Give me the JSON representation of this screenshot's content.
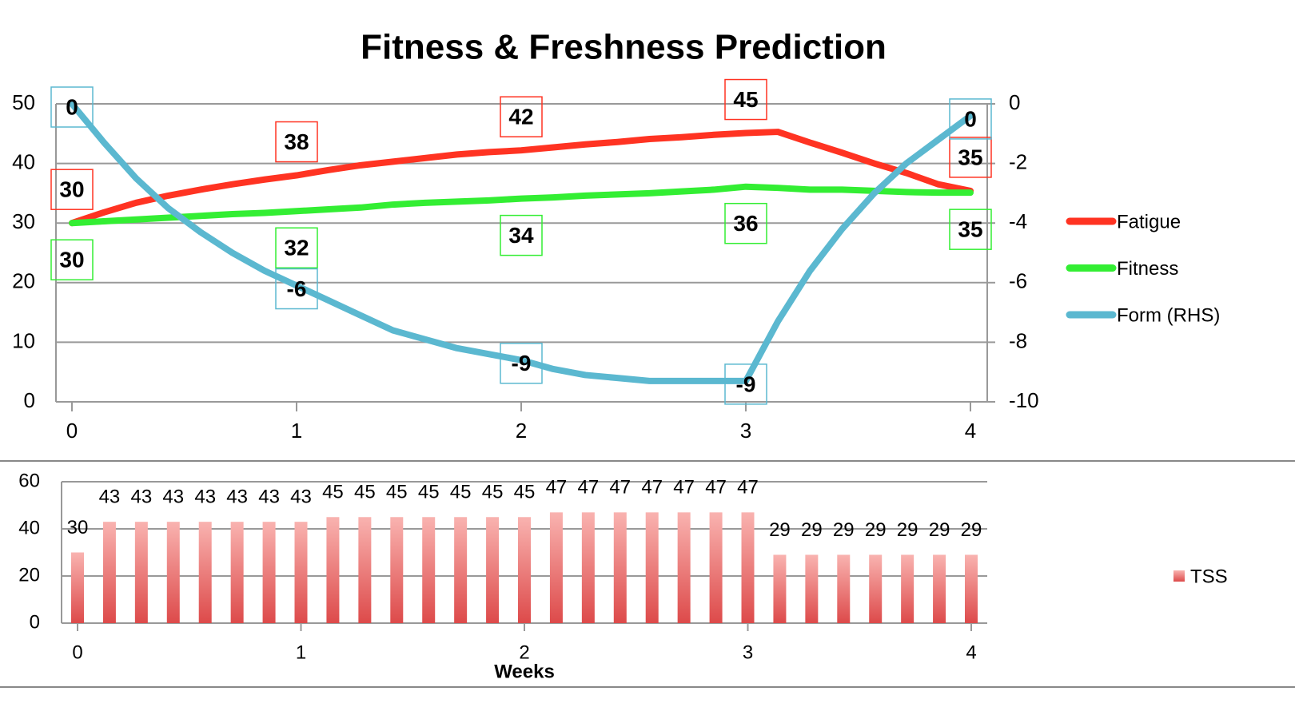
{
  "chart_data": [
    {
      "type": "line",
      "title": "Fitness & Freshness Prediction",
      "x": [
        0,
        1,
        2,
        3,
        4,
        5,
        6,
        7,
        8,
        9,
        10,
        11,
        12,
        13,
        14,
        15,
        16,
        17,
        18,
        19,
        20,
        21,
        22,
        23,
        24,
        25,
        26,
        27,
        28
      ],
      "xlim": [
        0,
        28
      ],
      "xticks": [
        {
          "value": 0,
          "label": "0"
        },
        {
          "value": 7,
          "label": "1"
        },
        {
          "value": 14,
          "label": "2"
        },
        {
          "value": 21,
          "label": "3"
        },
        {
          "value": 28,
          "label": "4"
        }
      ],
      "ylim": [
        0,
        50
      ],
      "yticks": [
        0,
        10,
        20,
        30,
        40,
        50
      ],
      "y2lim": [
        -10,
        0
      ],
      "y2ticks": [
        -10,
        -8,
        -6,
        -4,
        -2,
        0
      ],
      "grid": true,
      "legend": "right",
      "series": [
        {
          "name": "Fatigue",
          "color": "#ff3322",
          "values": [
            30,
            31.8,
            33.4,
            34.6,
            35.6,
            36.5,
            37.3,
            38.0,
            38.9,
            39.7,
            40.3,
            40.9,
            41.5,
            41.9,
            42.2,
            42.7,
            43.2,
            43.6,
            44.1,
            44.4,
            44.8,
            45.1,
            45.3,
            43.5,
            41.8,
            40.0,
            38.4,
            36.5,
            35.4
          ],
          "value_labels": [
            "30",
            null,
            null,
            null,
            null,
            null,
            null,
            "38",
            null,
            null,
            null,
            null,
            null,
            null,
            "42",
            null,
            null,
            null,
            null,
            null,
            null,
            "45",
            null,
            null,
            null,
            null,
            null,
            null,
            "35"
          ]
        },
        {
          "name": "Fitness",
          "color": "#33ee33",
          "values": [
            30,
            30.3,
            30.6,
            30.9,
            31.2,
            31.5,
            31.7,
            32.0,
            32.3,
            32.6,
            33.1,
            33.4,
            33.6,
            33.8,
            34.1,
            34.3,
            34.6,
            34.8,
            35.0,
            35.3,
            35.6,
            36.1,
            35.9,
            35.6,
            35.6,
            35.4,
            35.2,
            35.1,
            35.1
          ],
          "value_labels": [
            "30",
            null,
            null,
            null,
            null,
            null,
            null,
            "32",
            null,
            null,
            null,
            null,
            null,
            null,
            "34",
            null,
            null,
            null,
            null,
            null,
            null,
            "36",
            null,
            null,
            null,
            null,
            null,
            null,
            "35"
          ]
        },
        {
          "name": "Form (RHS)",
          "color": "#5bb8d0",
          "axis": "y2",
          "values": [
            0,
            -1.3,
            -2.5,
            -3.5,
            -4.3,
            -5.0,
            -5.6,
            -6.1,
            -6.6,
            -7.1,
            -7.6,
            -7.9,
            -8.2,
            -8.4,
            -8.6,
            -8.9,
            -9.1,
            -9.2,
            -9.3,
            -9.3,
            -9.3,
            -9.3,
            -7.3,
            -5.6,
            -4.2,
            -3.0,
            -2.0,
            -1.2,
            -0.4
          ],
          "value_labels": [
            "0",
            null,
            null,
            null,
            null,
            null,
            null,
            "-6",
            null,
            null,
            null,
            null,
            null,
            null,
            "-9",
            null,
            null,
            null,
            null,
            null,
            null,
            "-9",
            null,
            null,
            null,
            null,
            null,
            null,
            "0"
          ]
        }
      ]
    },
    {
      "type": "bar",
      "xlabel": "Weeks",
      "x": [
        0,
        1,
        2,
        3,
        4,
        5,
        6,
        7,
        8,
        9,
        10,
        11,
        12,
        13,
        14,
        15,
        16,
        17,
        18,
        19,
        20,
        21,
        22,
        23,
        24,
        25,
        26,
        27,
        28
      ],
      "xlim": [
        0,
        28
      ],
      "xticks": [
        {
          "value": 0,
          "label": "0"
        },
        {
          "value": 7,
          "label": "1"
        },
        {
          "value": 14,
          "label": "2"
        },
        {
          "value": 21,
          "label": "3"
        },
        {
          "value": 28,
          "label": "4"
        }
      ],
      "ylim": [
        0,
        60
      ],
      "yticks": [
        0,
        20,
        40,
        60
      ],
      "grid": true,
      "legend": "right",
      "series": [
        {
          "name": "TSS",
          "color": "#e05555",
          "values": [
            30,
            43,
            43,
            43,
            43,
            43,
            43,
            43,
            45,
            45,
            45,
            45,
            45,
            45,
            45,
            47,
            47,
            47,
            47,
            47,
            47,
            47,
            29,
            29,
            29,
            29,
            29,
            29,
            29
          ]
        }
      ]
    }
  ]
}
